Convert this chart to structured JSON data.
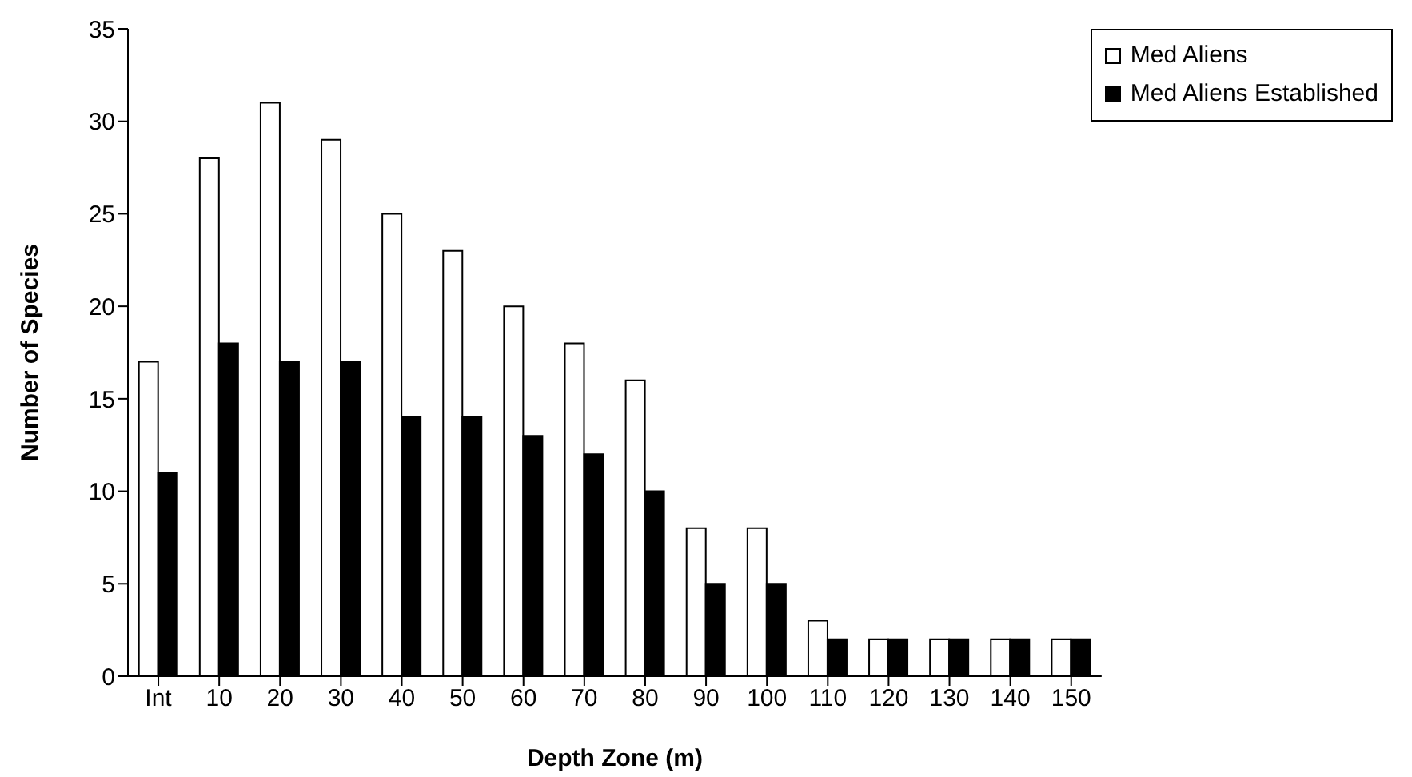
{
  "chart_data": {
    "type": "bar",
    "xlabel": "Depth Zone (m)",
    "ylabel": "Number of Species",
    "categories": [
      "Int",
      "10",
      "20",
      "30",
      "40",
      "50",
      "60",
      "70",
      "80",
      "90",
      "100",
      "110",
      "120",
      "130",
      "140",
      "150"
    ],
    "series": [
      {
        "name": "Med Aliens",
        "color": "#ffffff",
        "values": [
          17,
          28,
          31,
          29,
          25,
          23,
          20,
          18,
          16,
          8,
          8,
          3,
          2,
          2,
          2,
          2
        ]
      },
      {
        "name": "Med Aliens Established",
        "color": "#000000",
        "values": [
          11,
          18,
          17,
          17,
          14,
          14,
          13,
          12,
          10,
          5,
          5,
          2,
          2,
          2,
          2,
          2
        ]
      }
    ],
    "ylim": [
      0,
      35
    ],
    "yticks": [
      0,
      5,
      10,
      15,
      20,
      25,
      30,
      35
    ],
    "grid": false,
    "legend": "top right"
  }
}
